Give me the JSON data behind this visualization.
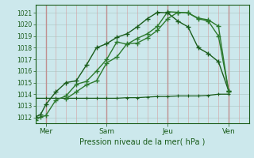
{
  "bg_color": "#cce8ec",
  "grid_color_v": "#d4a0a0",
  "grid_color_h": "#b8d4d4",
  "line_color_dark": "#1a5c1a",
  "line_color_mid": "#2d7a2d",
  "xlabel": "Pression niveau de la mer( hPa )",
  "ylim": [
    1011.5,
    1021.7
  ],
  "yticks": [
    1012,
    1013,
    1014,
    1015,
    1016,
    1017,
    1018,
    1019,
    1020,
    1021
  ],
  "day_labels": [
    "Mer",
    "Sam",
    "Jeu",
    "Ven"
  ],
  "day_positions": [
    1,
    7,
    13,
    19
  ],
  "xmin": 0,
  "xmax": 21,
  "series1_x": [
    0,
    0.5,
    1,
    2,
    3,
    4,
    5,
    6,
    7,
    8,
    9,
    10,
    11,
    12,
    13,
    14,
    15,
    16,
    17,
    18,
    19
  ],
  "series1_y": [
    1011.75,
    1012.05,
    1012.15,
    1013.5,
    1013.85,
    1014.85,
    1015.1,
    1016.0,
    1017.0,
    1018.5,
    1018.3,
    1018.8,
    1019.2,
    1019.85,
    1021.1,
    1021.05,
    1021.0,
    1020.5,
    1020.3,
    1019.0,
    1014.3
  ],
  "series2_x": [
    0,
    0.5,
    1,
    2,
    3,
    4,
    5,
    6,
    7,
    8,
    9,
    10,
    11,
    12,
    13,
    14,
    15,
    16,
    17,
    18,
    19
  ],
  "series2_y": [
    1012.05,
    1012.25,
    1013.1,
    1014.2,
    1015.0,
    1015.15,
    1016.5,
    1018.0,
    1018.35,
    1018.9,
    1019.2,
    1019.8,
    1020.5,
    1021.05,
    1021.0,
    1020.3,
    1019.8,
    1018.0,
    1017.5,
    1016.8,
    1014.3
  ],
  "series3_x": [
    3,
    4,
    5,
    6,
    7,
    8,
    9,
    10,
    11,
    12,
    13,
    14,
    15,
    16,
    17,
    18,
    19
  ],
  "series3_y": [
    1013.6,
    1014.2,
    1014.8,
    1015.15,
    1016.7,
    1017.2,
    1018.35,
    1018.4,
    1018.85,
    1019.5,
    1020.5,
    1021.05,
    1021.0,
    1020.55,
    1020.4,
    1019.85,
    1014.2
  ],
  "series4_x": [
    0,
    1,
    2,
    3,
    4,
    5,
    6,
    7,
    8,
    9,
    10,
    11,
    12,
    13,
    14,
    15,
    16,
    17,
    18,
    19
  ],
  "series4_y": [
    1013.65,
    1013.65,
    1013.65,
    1013.65,
    1013.65,
    1013.65,
    1013.65,
    1013.65,
    1013.65,
    1013.7,
    1013.7,
    1013.75,
    1013.8,
    1013.8,
    1013.85,
    1013.85,
    1013.85,
    1013.9,
    1014.0,
    1014.0
  ]
}
